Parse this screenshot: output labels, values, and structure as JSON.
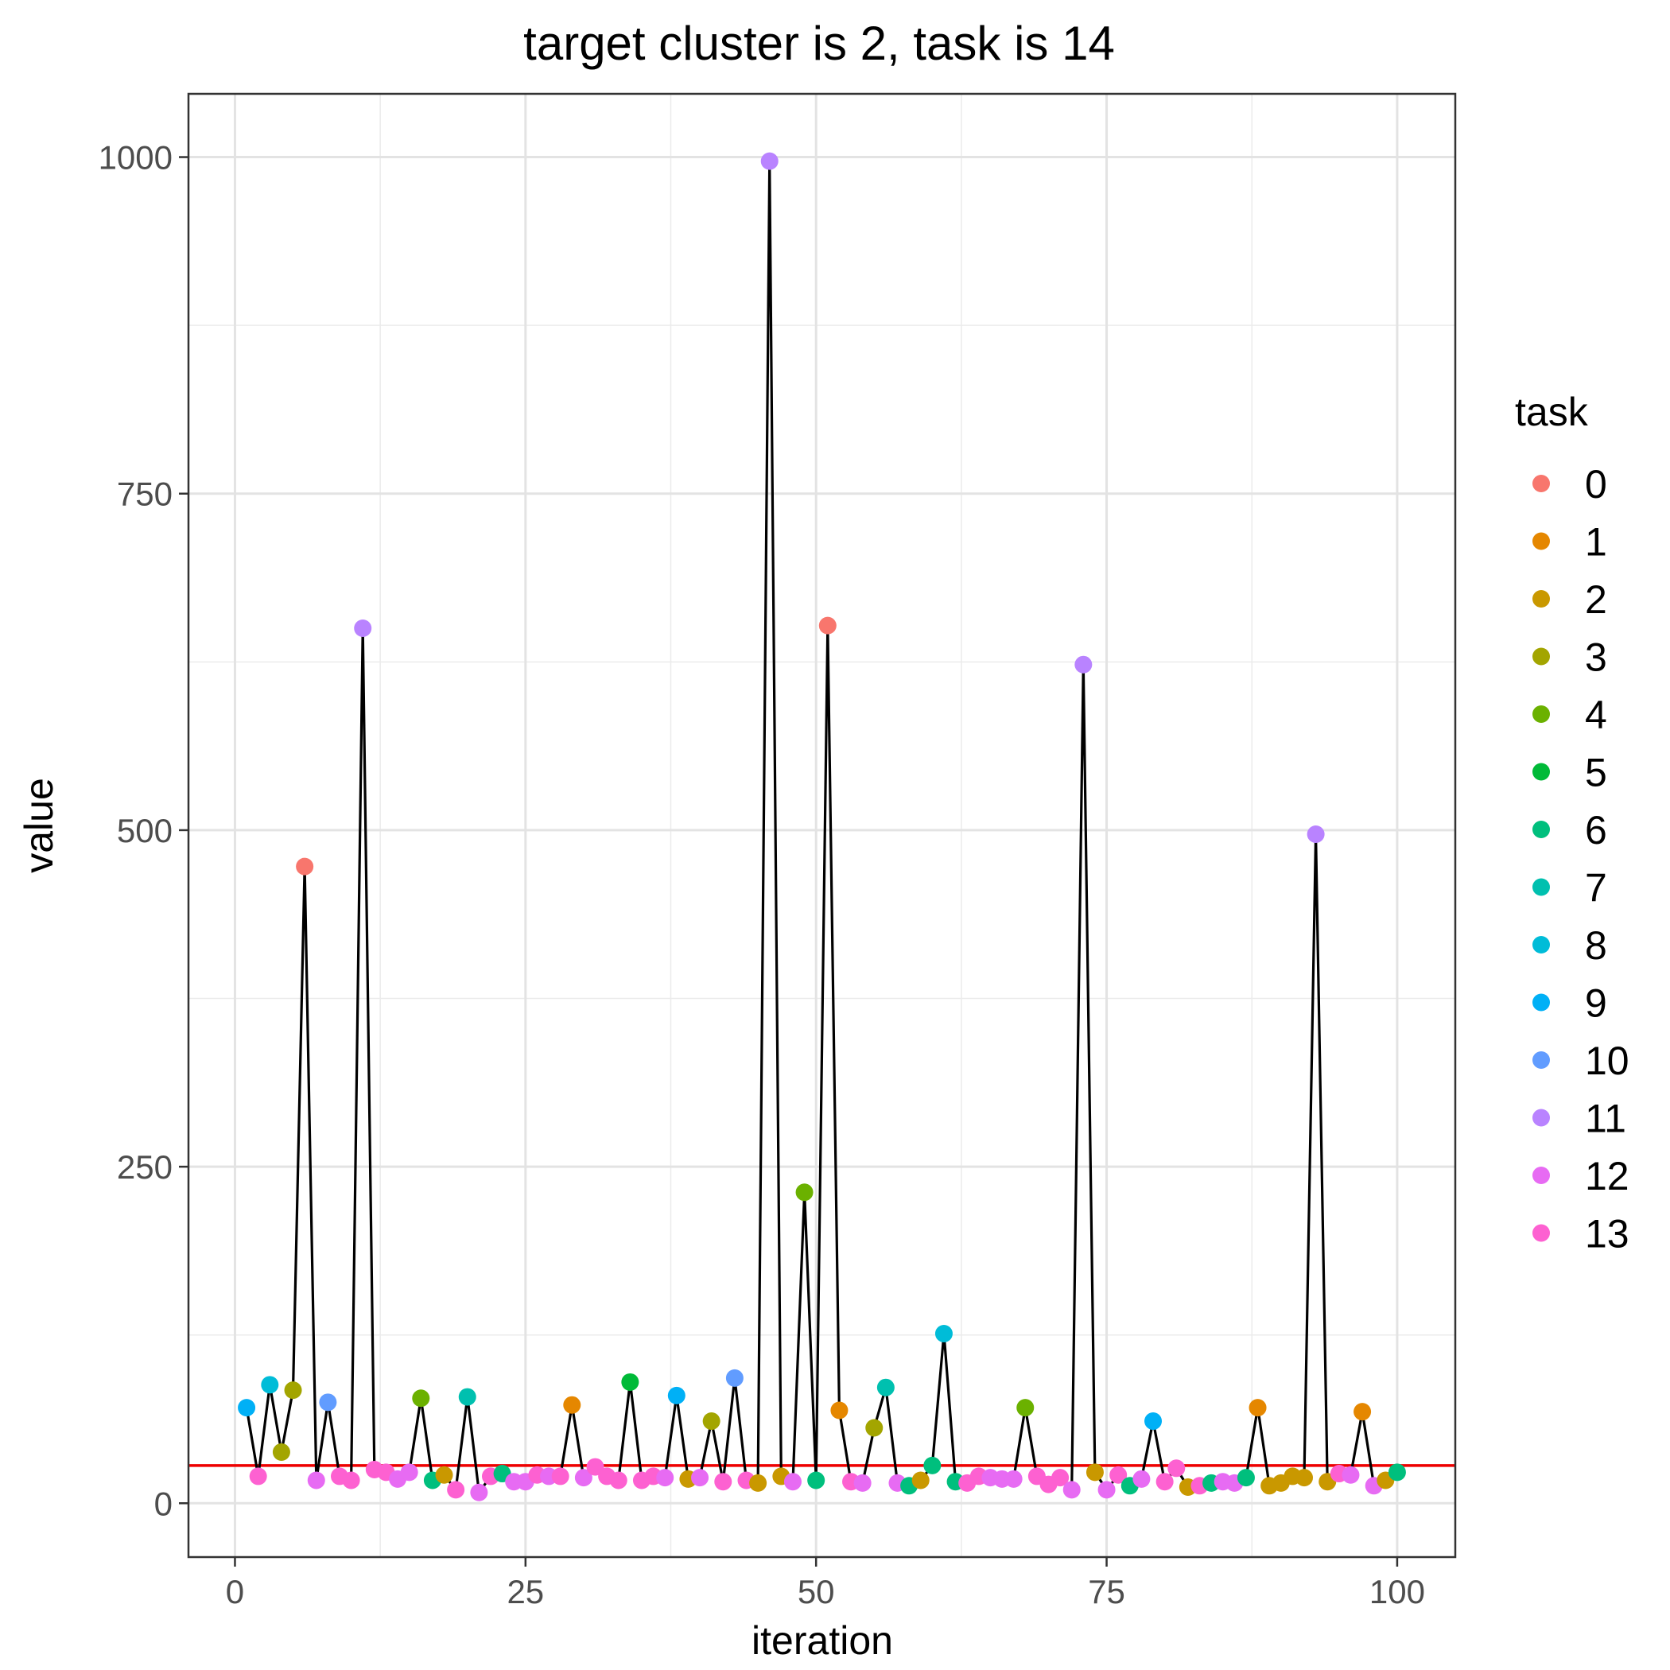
{
  "chart_data": {
    "type": "scatter",
    "title": "target cluster is 2, task is 14",
    "xlabel": "iteration",
    "ylabel": "value",
    "xlim": [
      -4,
      105
    ],
    "ylim": [
      -40,
      1047
    ],
    "x_ticks": [
      0,
      25,
      50,
      75,
      100
    ],
    "x_tick_labels": [
      "0",
      "25",
      "50",
      "75",
      "100"
    ],
    "y_ticks": [
      0,
      250,
      500,
      750,
      1000
    ],
    "y_tick_labels": [
      "0",
      "250",
      "500",
      "750",
      "1000"
    ],
    "grid": true,
    "legend_title": "task",
    "legend_position": "right",
    "reference_line": {
      "y": 28,
      "color": "#ee0000"
    },
    "series_line_color": "#000000",
    "legend": [
      {
        "label": "0",
        "color": "#F8766D"
      },
      {
        "label": "1",
        "color": "#E58700"
      },
      {
        "label": "2",
        "color": "#C99800"
      },
      {
        "label": "3",
        "color": "#A3A500"
      },
      {
        "label": "4",
        "color": "#6BB100"
      },
      {
        "label": "5",
        "color": "#00BA38"
      },
      {
        "label": "6",
        "color": "#00BF7D"
      },
      {
        "label": "7",
        "color": "#00C0AF"
      },
      {
        "label": "8",
        "color": "#00BCD8"
      },
      {
        "label": "9",
        "color": "#00B0F6"
      },
      {
        "label": "10",
        "color": "#619CFF"
      },
      {
        "label": "11",
        "color": "#B983FF"
      },
      {
        "label": "12",
        "color": "#E76BF3"
      },
      {
        "label": "13",
        "color": "#FD61D1"
      }
    ],
    "points": [
      {
        "x": 1,
        "y": 71,
        "task": 9
      },
      {
        "x": 2,
        "y": 20,
        "task": 13
      },
      {
        "x": 3,
        "y": 88,
        "task": 8
      },
      {
        "x": 4,
        "y": 38,
        "task": 3
      },
      {
        "x": 5,
        "y": 84,
        "task": 3
      },
      {
        "x": 6,
        "y": 473,
        "task": 0
      },
      {
        "x": 7,
        "y": 17,
        "task": 12
      },
      {
        "x": 8,
        "y": 75,
        "task": 10
      },
      {
        "x": 9,
        "y": 20,
        "task": 13
      },
      {
        "x": 10,
        "y": 17,
        "task": 13
      },
      {
        "x": 11,
        "y": 650,
        "task": 11
      },
      {
        "x": 12,
        "y": 25,
        "task": 13
      },
      {
        "x": 13,
        "y": 23,
        "task": 13
      },
      {
        "x": 14,
        "y": 18,
        "task": 12
      },
      {
        "x": 15,
        "y": 23,
        "task": 12
      },
      {
        "x": 16,
        "y": 78,
        "task": 4
      },
      {
        "x": 17,
        "y": 17,
        "task": 6
      },
      {
        "x": 18,
        "y": 21,
        "task": 2
      },
      {
        "x": 19,
        "y": 10,
        "task": 13
      },
      {
        "x": 20,
        "y": 79,
        "task": 7
      },
      {
        "x": 21,
        "y": 8,
        "task": 12
      },
      {
        "x": 22,
        "y": 20,
        "task": 13
      },
      {
        "x": 23,
        "y": 22,
        "task": 6
      },
      {
        "x": 24,
        "y": 16,
        "task": 12
      },
      {
        "x": 25,
        "y": 16,
        "task": 12
      },
      {
        "x": 26,
        "y": 21,
        "task": 13
      },
      {
        "x": 27,
        "y": 20,
        "task": 12
      },
      {
        "x": 28,
        "y": 20,
        "task": 13
      },
      {
        "x": 29,
        "y": 73,
        "task": 1
      },
      {
        "x": 30,
        "y": 19,
        "task": 12
      },
      {
        "x": 31,
        "y": 27,
        "task": 13
      },
      {
        "x": 32,
        "y": 20,
        "task": 13
      },
      {
        "x": 33,
        "y": 17,
        "task": 13
      },
      {
        "x": 34,
        "y": 90,
        "task": 5
      },
      {
        "x": 35,
        "y": 17,
        "task": 13
      },
      {
        "x": 36,
        "y": 20,
        "task": 13
      },
      {
        "x": 37,
        "y": 19,
        "task": 12
      },
      {
        "x": 38,
        "y": 80,
        "task": 9
      },
      {
        "x": 39,
        "y": 18,
        "task": 2
      },
      {
        "x": 40,
        "y": 19,
        "task": 12
      },
      {
        "x": 41,
        "y": 61,
        "task": 3
      },
      {
        "x": 42,
        "y": 16,
        "task": 13
      },
      {
        "x": 43,
        "y": 93,
        "task": 10
      },
      {
        "x": 44,
        "y": 17,
        "task": 13
      },
      {
        "x": 45,
        "y": 15,
        "task": 2
      },
      {
        "x": 46,
        "y": 997,
        "task": 11
      },
      {
        "x": 47,
        "y": 20,
        "task": 2
      },
      {
        "x": 48,
        "y": 16,
        "task": 12
      },
      {
        "x": 49,
        "y": 231,
        "task": 4
      },
      {
        "x": 50,
        "y": 17,
        "task": 6
      },
      {
        "x": 51,
        "y": 652,
        "task": 0
      },
      {
        "x": 52,
        "y": 69,
        "task": 1
      },
      {
        "x": 53,
        "y": 16,
        "task": 13
      },
      {
        "x": 54,
        "y": 15,
        "task": 12
      },
      {
        "x": 55,
        "y": 56,
        "task": 3
      },
      {
        "x": 56,
        "y": 86,
        "task": 7
      },
      {
        "x": 57,
        "y": 15,
        "task": 12
      },
      {
        "x": 58,
        "y": 13,
        "task": 6
      },
      {
        "x": 59,
        "y": 17,
        "task": 2
      },
      {
        "x": 60,
        "y": 28,
        "task": 6
      },
      {
        "x": 61,
        "y": 126,
        "task": 8
      },
      {
        "x": 62,
        "y": 16,
        "task": 6
      },
      {
        "x": 63,
        "y": 15,
        "task": 13
      },
      {
        "x": 64,
        "y": 20,
        "task": 13
      },
      {
        "x": 65,
        "y": 19,
        "task": 12
      },
      {
        "x": 66,
        "y": 18,
        "task": 12
      },
      {
        "x": 67,
        "y": 18,
        "task": 12
      },
      {
        "x": 68,
        "y": 71,
        "task": 4
      },
      {
        "x": 69,
        "y": 20,
        "task": 13
      },
      {
        "x": 70,
        "y": 14,
        "task": 13
      },
      {
        "x": 71,
        "y": 19,
        "task": 13
      },
      {
        "x": 72,
        "y": 10,
        "task": 12
      },
      {
        "x": 73,
        "y": 623,
        "task": 11
      },
      {
        "x": 74,
        "y": 23,
        "task": 2
      },
      {
        "x": 75,
        "y": 10,
        "task": 12
      },
      {
        "x": 76,
        "y": 21,
        "task": 13
      },
      {
        "x": 77,
        "y": 13,
        "task": 6
      },
      {
        "x": 78,
        "y": 18,
        "task": 12
      },
      {
        "x": 79,
        "y": 61,
        "task": 9
      },
      {
        "x": 80,
        "y": 16,
        "task": 13
      },
      {
        "x": 81,
        "y": 26,
        "task": 13
      },
      {
        "x": 82,
        "y": 12,
        "task": 2
      },
      {
        "x": 83,
        "y": 13,
        "task": 13
      },
      {
        "x": 84,
        "y": 15,
        "task": 6
      },
      {
        "x": 85,
        "y": 16,
        "task": 12
      },
      {
        "x": 86,
        "y": 15,
        "task": 12
      },
      {
        "x": 87,
        "y": 19,
        "task": 6
      },
      {
        "x": 88,
        "y": 71,
        "task": 1
      },
      {
        "x": 89,
        "y": 13,
        "task": 2
      },
      {
        "x": 90,
        "y": 15,
        "task": 2
      },
      {
        "x": 91,
        "y": 20,
        "task": 2
      },
      {
        "x": 92,
        "y": 19,
        "task": 2
      },
      {
        "x": 93,
        "y": 497,
        "task": 11
      },
      {
        "x": 94,
        "y": 16,
        "task": 2
      },
      {
        "x": 95,
        "y": 22,
        "task": 13
      },
      {
        "x": 96,
        "y": 21,
        "task": 12
      },
      {
        "x": 97,
        "y": 68,
        "task": 1
      },
      {
        "x": 98,
        "y": 13,
        "task": 12
      },
      {
        "x": 99,
        "y": 17,
        "task": 2
      },
      {
        "x": 100,
        "y": 23,
        "task": 6
      }
    ]
  }
}
